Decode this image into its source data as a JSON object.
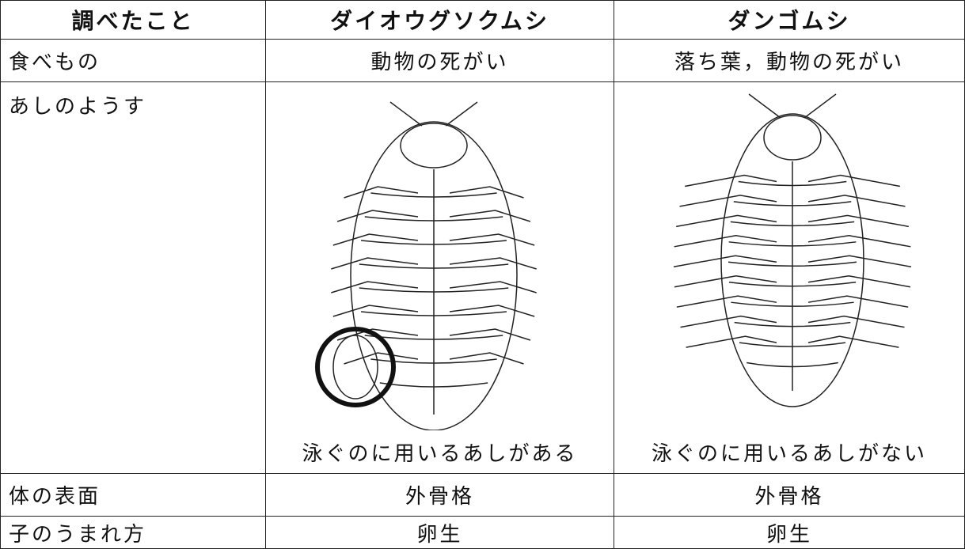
{
  "table": {
    "header": [
      "調べたこと",
      "ダイオウグソクムシ",
      "ダンゴムシ"
    ],
    "rows": [
      [
        "食べもの",
        "動物の死がい",
        "落ち葉，動物の死がい"
      ],
      [
        "あしのようす",
        "泳ぐのに用いるあしがある",
        "泳ぐのに用いるあしがない"
      ],
      [
        "体の表面",
        "外骨格",
        "外骨格"
      ],
      [
        "子のうまれ方",
        "卵生",
        "卵生"
      ]
    ]
  }
}
